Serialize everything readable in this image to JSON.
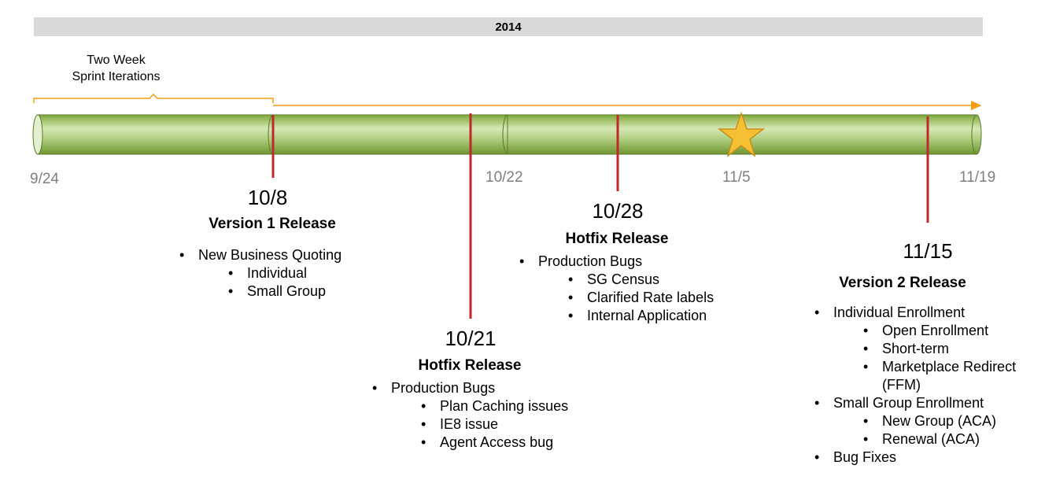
{
  "year": "2014",
  "sprint_label": {
    "line1": "Two Week",
    "line2": "Sprint Iterations"
  },
  "axis_dates": [
    "9/24",
    "10/22",
    "11/5",
    "11/19"
  ],
  "colors": {
    "tube": "#9bbb59",
    "marker": "#c0282d",
    "arrow": "#f39c12",
    "star": "#f5c033",
    "year_bar": "#d9d9d9",
    "axis_text": "#7f7f7f"
  },
  "releases": [
    {
      "date": "10/8",
      "title": "Version 1 Release",
      "items": [
        {
          "text": "New Business Quoting",
          "sub": [
            "Individual",
            "Small Group"
          ]
        }
      ]
    },
    {
      "date": "10/21",
      "title": "Hotfix Release",
      "items": [
        {
          "text": "Production Bugs",
          "sub": [
            "Plan Caching issues",
            "IE8 issue",
            "Agent Access bug"
          ]
        }
      ]
    },
    {
      "date": "10/28",
      "title": "Hotfix Release",
      "items": [
        {
          "text": "Production Bugs",
          "sub": [
            "SG Census",
            "Clarified Rate labels",
            "Internal Application"
          ]
        }
      ]
    },
    {
      "date": "11/15",
      "title": "Version 2 Release",
      "items": [
        {
          "text": "Individual Enrollment",
          "sub": [
            "Open Enrollment",
            "Short-term",
            "Marketplace Redirect (FFM)"
          ]
        },
        {
          "text": "Small Group Enrollment",
          "sub": [
            "New Group (ACA)",
            "Renewal (ACA)"
          ]
        },
        {
          "text": "Bug Fixes",
          "sub": []
        }
      ]
    }
  ]
}
